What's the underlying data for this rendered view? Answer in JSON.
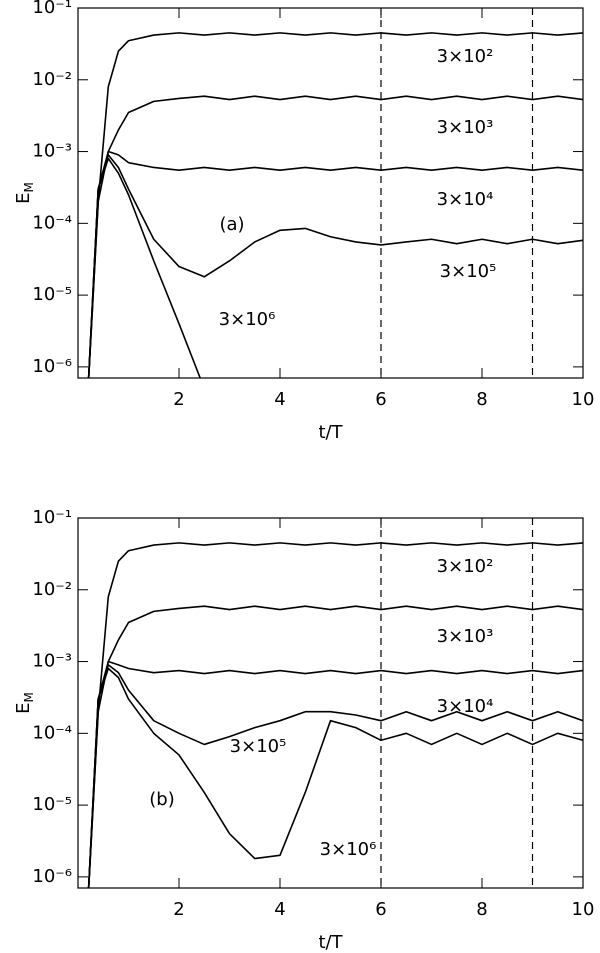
{
  "chart_data": [
    {
      "type": "line",
      "annotation": "(a)",
      "xlabel": "t/T",
      "ylabel": {
        "text": "E",
        "subscript": "M"
      },
      "log_y": true,
      "xlim": [
        0,
        10
      ],
      "ylim": [
        7e-07,
        0.1
      ],
      "xticks": [
        2,
        4,
        6,
        8,
        10
      ],
      "yticks": [
        {
          "value": 1e-06,
          "label": "10⁻⁶"
        },
        {
          "value": 1e-05,
          "label": "10⁻⁵"
        },
        {
          "value": 0.0001,
          "label": "10⁻⁴"
        },
        {
          "value": 0.001,
          "label": "10⁻³"
        },
        {
          "value": 0.01,
          "label": "10⁻²"
        },
        {
          "value": 0.1,
          "label": "10⁻¹"
        }
      ],
      "vlines": [
        6,
        9
      ],
      "x": [
        0.2,
        0.4,
        0.6,
        0.8,
        1,
        1.5,
        2,
        2.5,
        3,
        3.5,
        4,
        4.5,
        5,
        5.5,
        6,
        6.5,
        7,
        7.5,
        8,
        8.5,
        9,
        9.5,
        10
      ],
      "series": [
        {
          "name": "3×10²",
          "color": "#000000",
          "values": [
            5e-07,
            0.0002,
            0.008,
            0.025,
            0.035,
            0.042,
            0.045,
            0.042,
            0.045,
            0.042,
            0.045,
            0.042,
            0.045,
            0.042,
            0.045,
            0.042,
            0.045,
            0.042,
            0.045,
            0.042,
            0.045,
            0.042,
            0.045
          ]
        },
        {
          "name": "3×10³",
          "color": "#000000",
          "values": [
            5e-07,
            0.0002,
            0.001,
            0.002,
            0.0035,
            0.005,
            0.0055,
            0.0059,
            0.0053,
            0.0059,
            0.0053,
            0.0059,
            0.0053,
            0.0059,
            0.0053,
            0.0059,
            0.0053,
            0.0059,
            0.0053,
            0.0059,
            0.0053,
            0.0059,
            0.0053
          ]
        },
        {
          "name": "3×10⁴",
          "color": "#000000",
          "values": [
            5e-07,
            0.0003,
            0.001,
            0.0009,
            0.0007,
            0.0006,
            0.00055,
            0.0006,
            0.00055,
            0.0006,
            0.00055,
            0.0006,
            0.00055,
            0.0006,
            0.00055,
            0.0006,
            0.00055,
            0.0006,
            0.00055,
            0.0006,
            0.00055,
            0.0006,
            0.00055
          ]
        },
        {
          "name": "3×10⁵",
          "color": "#000000",
          "values": [
            5e-07,
            0.0003,
            0.0009,
            0.0006,
            0.0003,
            6e-05,
            2.5e-05,
            1.8e-05,
            3e-05,
            5.5e-05,
            8e-05,
            8.5e-05,
            6.5e-05,
            5.5e-05,
            5e-05,
            5.5e-05,
            6e-05,
            5.2e-05,
            6e-05,
            5.2e-05,
            6e-05,
            5.2e-05,
            5.8e-05
          ]
        },
        {
          "name": "3×10⁶",
          "color": "#000000",
          "values": [
            5e-07,
            0.0003,
            0.0008,
            0.0005,
            0.00025,
            3e-05,
            4e-06,
            5e-07,
            null,
            null,
            null,
            null,
            null,
            null,
            null,
            null,
            null,
            null,
            null,
            null,
            null,
            null,
            null
          ]
        }
      ]
    },
    {
      "type": "line",
      "annotation": "(b)",
      "xlabel": "t/T",
      "ylabel": {
        "text": "E",
        "subscript": "M"
      },
      "log_y": true,
      "xlim": [
        0,
        10
      ],
      "ylim": [
        7e-07,
        0.1
      ],
      "xticks": [
        2,
        4,
        6,
        8,
        10
      ],
      "yticks": [
        {
          "value": 1e-06,
          "label": "10⁻⁶"
        },
        {
          "value": 1e-05,
          "label": "10⁻⁵"
        },
        {
          "value": 0.0001,
          "label": "10⁻⁴"
        },
        {
          "value": 0.001,
          "label": "10⁻³"
        },
        {
          "value": 0.01,
          "label": "10⁻²"
        },
        {
          "value": 0.1,
          "label": "10⁻¹"
        }
      ],
      "vlines": [
        6,
        9
      ],
      "x": [
        0.2,
        0.4,
        0.6,
        0.8,
        1,
        1.5,
        2,
        2.5,
        3,
        3.5,
        4,
        4.5,
        5,
        5.5,
        6,
        6.5,
        7,
        7.5,
        8,
        8.5,
        9,
        9.5,
        10
      ],
      "series": [
        {
          "name": "3×10²",
          "color": "#000000",
          "values": [
            5e-07,
            0.0002,
            0.008,
            0.025,
            0.035,
            0.042,
            0.045,
            0.042,
            0.045,
            0.042,
            0.045,
            0.042,
            0.045,
            0.042,
            0.045,
            0.042,
            0.045,
            0.042,
            0.045,
            0.042,
            0.045,
            0.042,
            0.045
          ]
        },
        {
          "name": "3×10³",
          "color": "#000000",
          "values": [
            5e-07,
            0.0002,
            0.001,
            0.002,
            0.0035,
            0.005,
            0.0055,
            0.0059,
            0.0053,
            0.0059,
            0.0053,
            0.0059,
            0.0053,
            0.0059,
            0.0053,
            0.0059,
            0.0053,
            0.0059,
            0.0053,
            0.0059,
            0.0053,
            0.0059,
            0.0053
          ]
        },
        {
          "name": "3×10⁴",
          "color": "#000000",
          "values": [
            5e-07,
            0.0003,
            0.001,
            0.0009,
            0.0008,
            0.0007,
            0.00075,
            0.00068,
            0.00075,
            0.00068,
            0.00075,
            0.00068,
            0.00075,
            0.00068,
            0.00075,
            0.00068,
            0.00075,
            0.00068,
            0.00075,
            0.00068,
            0.00075,
            0.00068,
            0.00075
          ]
        },
        {
          "name": "3×10⁵",
          "color": "#000000",
          "values": [
            5e-07,
            0.0003,
            0.0009,
            0.0007,
            0.0004,
            0.00015,
            0.0001,
            7e-05,
            9e-05,
            0.00012,
            0.00015,
            0.0002,
            0.0002,
            0.00018,
            0.00015,
            0.0002,
            0.00015,
            0.0002,
            0.00015,
            0.0002,
            0.00015,
            0.0002,
            0.00015
          ]
        },
        {
          "name": "3×10⁶",
          "color": "#000000",
          "values": [
            5e-07,
            0.0003,
            0.0008,
            0.0006,
            0.0003,
            0.0001,
            5e-05,
            1.5e-05,
            4e-06,
            1.8e-06,
            2e-06,
            1.5e-05,
            0.00015,
            0.00012,
            8e-05,
            0.0001,
            7e-05,
            0.0001,
            7e-05,
            0.0001,
            7e-05,
            0.0001,
            8e-05
          ]
        }
      ]
    }
  ]
}
